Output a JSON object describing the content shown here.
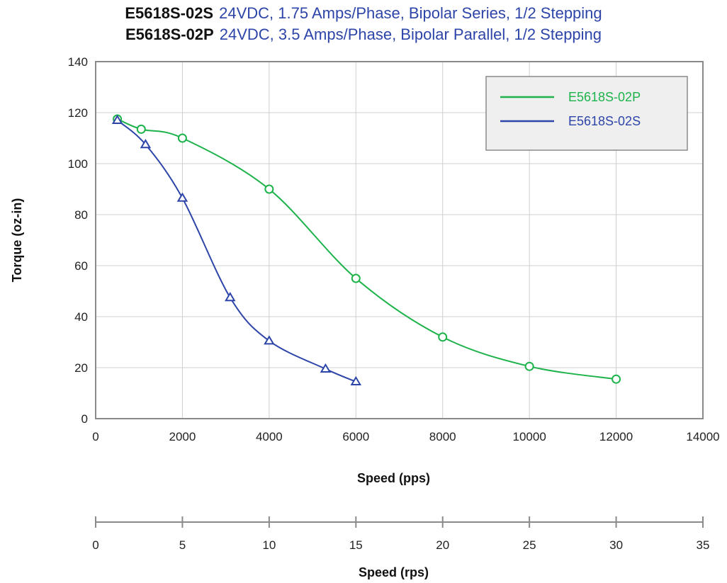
{
  "titles": [
    {
      "model": "E5618S-02S",
      "desc": "24VDC, 1.75 Amps/Phase, Bipolar Series, 1/2 Stepping"
    },
    {
      "model": "E5618S-02P",
      "desc": "24VDC, 3.5 Amps/Phase, Bipolar Parallel, 1/2 Stepping"
    }
  ],
  "chart_data": {
    "type": "line",
    "xlabel": "Speed (pps)",
    "ylabel": "Torque (oz-in)",
    "xlim": [
      0,
      14000
    ],
    "ylim": [
      0,
      140
    ],
    "x_ticks": [
      0,
      2000,
      4000,
      6000,
      8000,
      10000,
      12000,
      14000
    ],
    "y_ticks": [
      0,
      20,
      40,
      60,
      80,
      100,
      120,
      140
    ],
    "grid": true,
    "legend_position": "top-right",
    "series": [
      {
        "name": "E5618S-02P",
        "color": "#1db34a",
        "marker": "circle",
        "points": [
          [
            500,
            117.5
          ],
          [
            1050,
            113.5
          ],
          [
            2000,
            110
          ],
          [
            4000,
            90
          ],
          [
            6000,
            55
          ],
          [
            8000,
            32
          ],
          [
            10000,
            20.5
          ],
          [
            12000,
            15.5
          ]
        ]
      },
      {
        "name": "E5618S-02S",
        "color": "#2d45a8",
        "marker": "triangle",
        "points": [
          [
            500,
            117
          ],
          [
            1150,
            107.5
          ],
          [
            2000,
            86.5
          ],
          [
            3100,
            47.5
          ],
          [
            4000,
            30.5
          ],
          [
            5300,
            19.5
          ],
          [
            6000,
            14.5
          ]
        ]
      }
    ],
    "secondary_x_axis": {
      "label": "Speed (rps)",
      "lim": [
        0,
        35
      ],
      "ticks": [
        0,
        5,
        10,
        15,
        20,
        25,
        30,
        35
      ]
    }
  }
}
